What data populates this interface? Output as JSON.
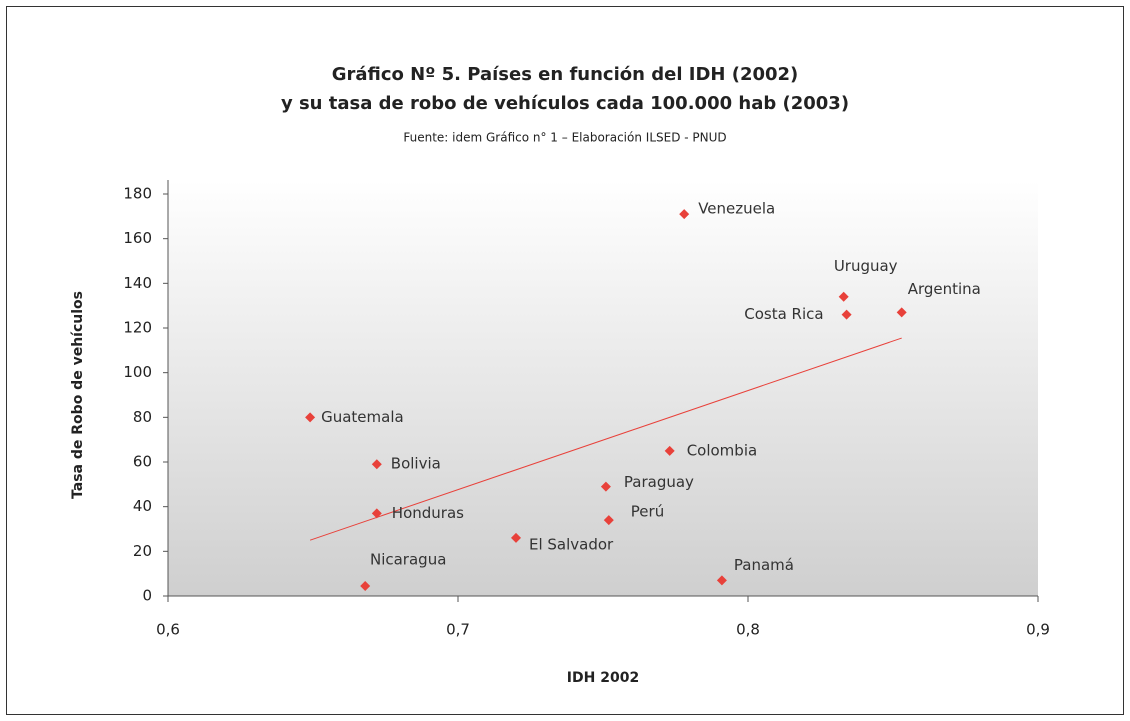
{
  "chart_data": {
    "type": "scatter",
    "title": "Gráfico Nº 5. Países en función del IDH (2002)",
    "title_line2": "y su tasa de robo de vehículos cada 100.000 hab (2003)",
    "subtitle": "Fuente: idem Gráfico n° 1 – Elaboración ILSED - PNUD",
    "x_label": "IDH 2002",
    "y_label": "Tasa de Robo de vehículos",
    "point_labels": [
      "Venezuela",
      "Uruguay",
      "Costa Rica",
      "Argentina",
      "Guatemala",
      "Bolivia",
      "Honduras",
      "Nicaragua",
      "El Salvador",
      "Paraguay",
      "Perú",
      "Colombia",
      "Panamá"
    ],
    "x": [
      0.778,
      0.833,
      0.834,
      0.853,
      0.649,
      0.672,
      0.672,
      0.668,
      0.72,
      0.751,
      0.752,
      0.773,
      0.791
    ],
    "values": [
      171,
      134,
      126,
      127,
      80,
      59,
      37,
      4.5,
      26,
      49,
      34,
      65,
      7
    ],
    "color": "#e8413a",
    "trendline": {
      "x": [
        0.649,
        0.853
      ],
      "y": [
        25,
        115.5
      ],
      "color": "#e8413a"
    },
    "xlim": [
      0.6,
      0.9
    ],
    "xticks": [
      {
        "value": 0.6,
        "label": "0,6"
      },
      {
        "value": 0.7,
        "label": "0,7"
      },
      {
        "value": 0.8,
        "label": "0,8"
      },
      {
        "value": 0.9,
        "label": "0,9"
      }
    ],
    "ylim": [
      0,
      180
    ],
    "yticks": [
      0,
      20,
      40,
      60,
      80,
      100,
      120,
      140,
      160,
      180
    ]
  }
}
